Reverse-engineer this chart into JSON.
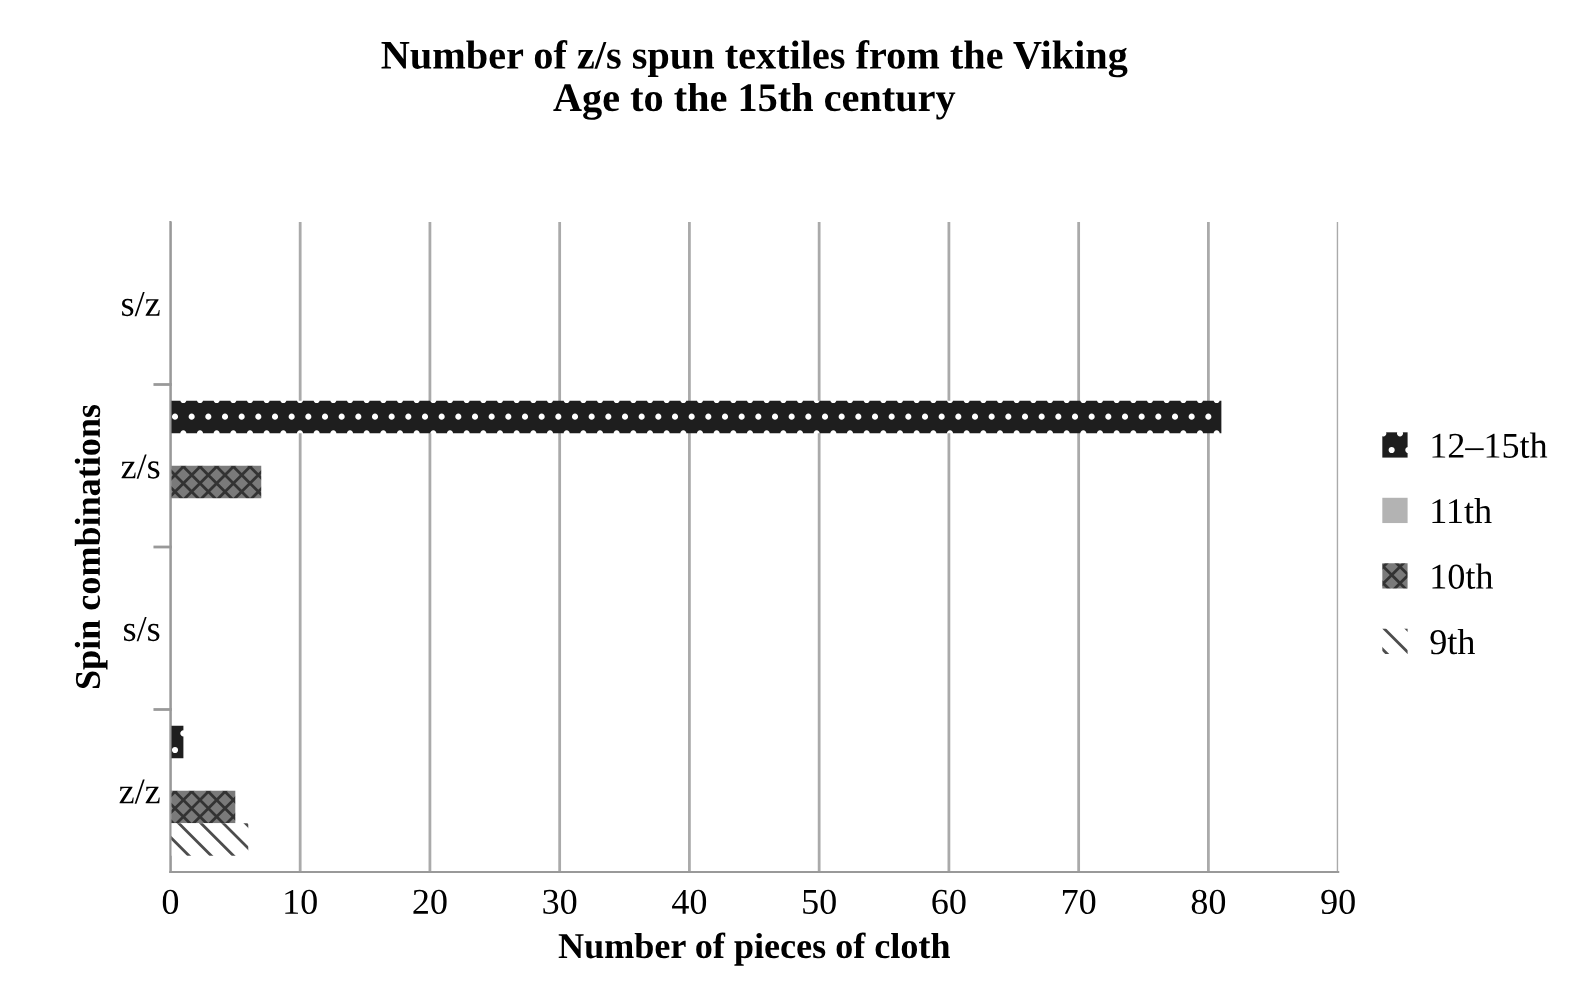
{
  "chart_data": {
    "type": "bar",
    "orientation": "horizontal",
    "title": "Number of z/s spun textiles from the Viking\nAge to the 15th century",
    "xlabel": "Number of pieces of cloth",
    "ylabel": "Spin combinations",
    "categories": [
      "s/z",
      "z/s",
      "s/s",
      "z/z"
    ],
    "series": [
      {
        "name": "12–15th",
        "color": "#1e1e1e",
        "values": [
          0,
          81,
          0,
          1
        ]
      },
      {
        "name": "11th",
        "color": "#b3b3b3",
        "values": [
          0,
          0,
          0,
          0
        ]
      },
      {
        "name": "10th",
        "color": "#7a7a7a",
        "values": [
          0,
          7,
          0,
          5
        ]
      },
      {
        "name": "9th",
        "color": "#4d4d4d",
        "values": [
          0,
          0,
          0,
          6
        ]
      }
    ],
    "xlim": [
      0,
      90
    ],
    "xticks": [
      0,
      10,
      20,
      30,
      40,
      50,
      60,
      70,
      80,
      90
    ],
    "grid": "x",
    "legend": "right"
  }
}
